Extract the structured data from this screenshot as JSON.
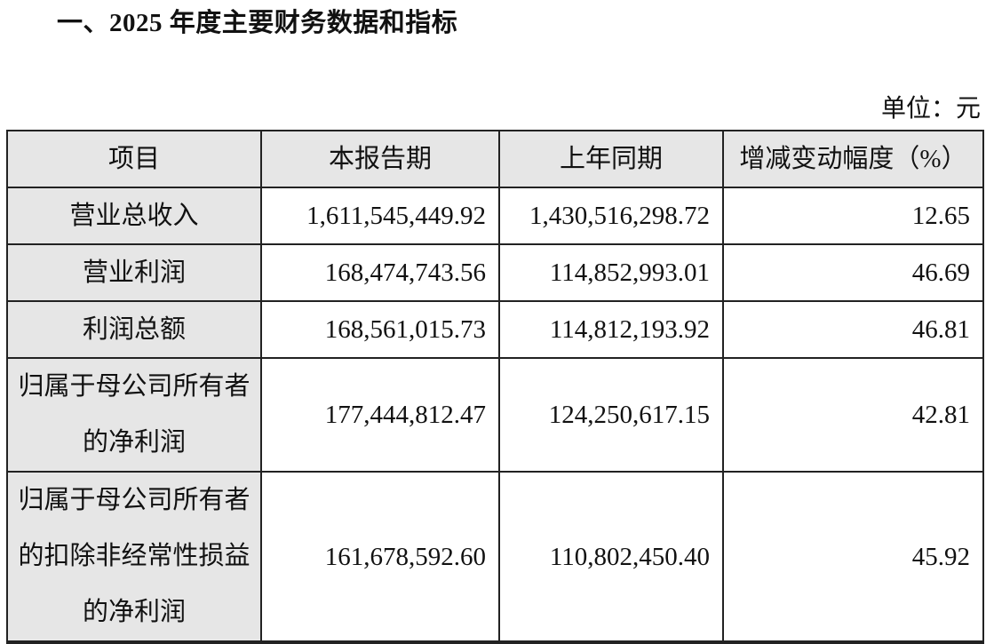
{
  "title": "一、2025 年度主要财务数据和指标",
  "unit": "单位：元",
  "table": {
    "headers": [
      "项目",
      "本报告期",
      "上年同期",
      "增减变动幅度（%）"
    ],
    "rows": [
      {
        "item": "营业总收入",
        "current": "1,611,545,449.92",
        "prior": "1,430,516,298.72",
        "change": "12.65"
      },
      {
        "item": "营业利润",
        "current": "168,474,743.56",
        "prior": "114,852,993.01",
        "change": "46.69"
      },
      {
        "item": "利润总额",
        "current": "168,561,015.73",
        "prior": "114,812,193.92",
        "change": "46.81"
      },
      {
        "item": "归属于母公司所有者的净利润",
        "current": "177,444,812.47",
        "prior": "124,250,617.15",
        "change": "42.81"
      },
      {
        "item": "归属于母公司所有者的扣除非经常性损益的净利润",
        "current": "161,678,592.60",
        "prior": "110,802,450.40",
        "change": "45.92"
      }
    ]
  }
}
